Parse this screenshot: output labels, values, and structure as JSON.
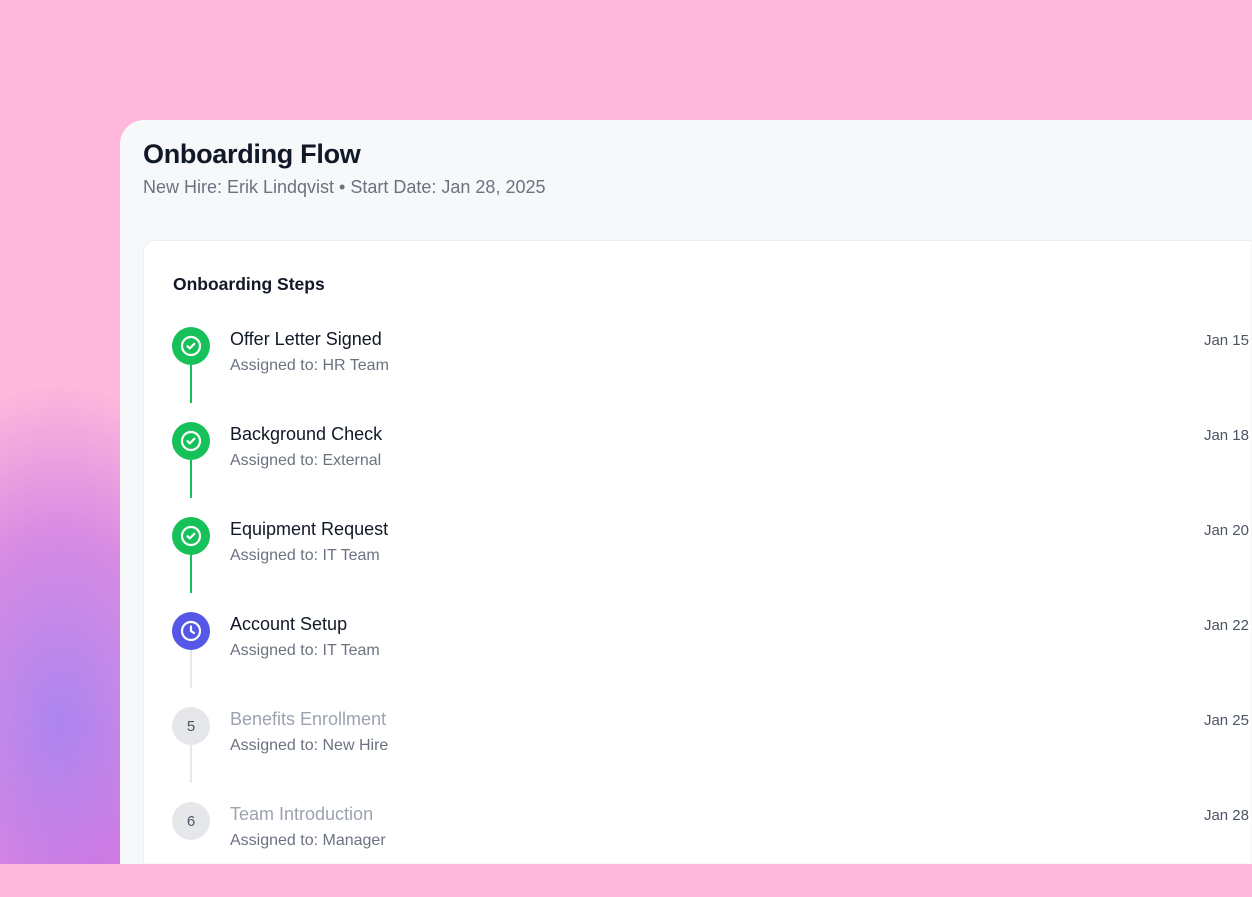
{
  "header": {
    "title": "Onboarding Flow",
    "subtitle": "New Hire: Erik Lindqvist • Start Date: Jan 28, 2025"
  },
  "section_title": "Onboarding Steps",
  "colors": {
    "completed": "#16c15a",
    "in_progress": "#5558e6",
    "pending": "#e5e7eb",
    "pending_line": "#e5e7eb"
  },
  "steps": [
    {
      "title": "Offer Letter Signed",
      "assignee": "Assigned to: HR Team",
      "date": "Jan 15",
      "status": "completed",
      "icon": "check-circle-icon"
    },
    {
      "title": "Background Check",
      "assignee": "Assigned to: External",
      "date": "Jan 18",
      "status": "completed",
      "icon": "check-circle-icon"
    },
    {
      "title": "Equipment Request",
      "assignee": "Assigned to: IT Team",
      "date": "Jan 20",
      "status": "completed",
      "icon": "check-circle-icon"
    },
    {
      "title": "Account Setup",
      "assignee": "Assigned to: IT Team",
      "date": "Jan 22",
      "status": "in_progress",
      "icon": "clock-icon"
    },
    {
      "title": "Benefits Enrollment",
      "assignee": "Assigned to: New Hire",
      "date": "Jan 25",
      "status": "pending",
      "number": "5"
    },
    {
      "title": "Team Introduction",
      "assignee": "Assigned to: Manager",
      "date": "Jan 28",
      "status": "pending",
      "number": "6"
    }
  ]
}
